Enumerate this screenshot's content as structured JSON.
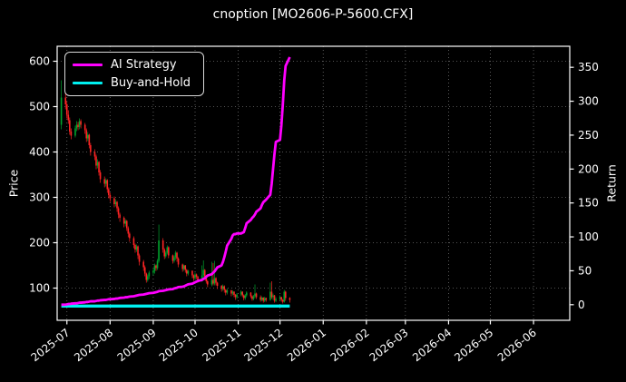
{
  "title": "cnoption [MO2606-P-5600.CFX]",
  "legend": {
    "items": [
      {
        "label": "AI Strategy",
        "color": "#ff00ff"
      },
      {
        "label": "Buy-and-Hold",
        "color": "#00f0f0"
      }
    ]
  },
  "chart_data": {
    "type": "candlestick_with_lines",
    "title": "cnoption [MO2606-P-5600.CFX]",
    "grid": true,
    "legend_position": "upper-left",
    "colors": {
      "background": "#000000",
      "text": "#ffffff",
      "grid": "#6f6f6f",
      "spine": "#ffffff",
      "up": "#00a52e",
      "down": "#ff2424",
      "ai": "#ff00ff",
      "buy_hold": "#00f0f0"
    },
    "price_axis": {
      "label": "Price",
      "ticks": [
        100,
        200,
        300,
        400,
        500,
        600
      ],
      "range": [
        29,
        633
      ]
    },
    "return_axis": {
      "label": "Return",
      "ticks": [
        0,
        50,
        100,
        150,
        200,
        250,
        300,
        350
      ],
      "range": [
        -23,
        381
      ]
    },
    "x_axis": {
      "range": [
        "2025-06-24",
        "2026-06-27"
      ],
      "ticks": [
        {
          "d": "2025-07-01",
          "label": "2025-07"
        },
        {
          "d": "2025-08-01",
          "label": "2025-08"
        },
        {
          "d": "2025-09-01",
          "label": "2025-09"
        },
        {
          "d": "2025-10-01",
          "label": "2025-10"
        },
        {
          "d": "2025-11-01",
          "label": "2025-11"
        },
        {
          "d": "2025-12-01",
          "label": "2025-12"
        },
        {
          "d": "2026-01-01",
          "label": "2026-01"
        },
        {
          "d": "2026-02-01",
          "label": "2026-02"
        },
        {
          "d": "2026-03-01",
          "label": "2026-03"
        },
        {
          "d": "2026-04-01",
          "label": "2026-04"
        },
        {
          "d": "2026-05-01",
          "label": "2026-05"
        },
        {
          "d": "2026-06-01",
          "label": "2026-06"
        }
      ]
    },
    "dates": [
      "2025-06-27",
      "2025-06-30",
      "2025-07-01",
      "2025-07-02",
      "2025-07-03",
      "2025-07-04",
      "2025-07-07",
      "2025-07-08",
      "2025-07-09",
      "2025-07-10",
      "2025-07-11",
      "2025-07-14",
      "2025-07-15",
      "2025-07-16",
      "2025-07-17",
      "2025-07-18",
      "2025-07-21",
      "2025-07-22",
      "2025-07-23",
      "2025-07-24",
      "2025-07-25",
      "2025-07-28",
      "2025-07-29",
      "2025-07-30",
      "2025-07-31",
      "2025-08-01",
      "2025-08-04",
      "2025-08-05",
      "2025-08-06",
      "2025-08-07",
      "2025-08-08",
      "2025-08-11",
      "2025-08-12",
      "2025-08-13",
      "2025-08-14",
      "2025-08-15",
      "2025-08-18",
      "2025-08-19",
      "2025-08-20",
      "2025-08-21",
      "2025-08-22",
      "2025-08-25",
      "2025-08-26",
      "2025-08-27",
      "2025-08-28",
      "2025-08-29",
      "2025-09-01",
      "2025-09-02",
      "2025-09-03",
      "2025-09-04",
      "2025-09-05",
      "2025-09-08",
      "2025-09-09",
      "2025-09-10",
      "2025-09-11",
      "2025-09-12",
      "2025-09-15",
      "2025-09-16",
      "2025-09-17",
      "2025-09-18",
      "2025-09-19",
      "2025-09-22",
      "2025-09-23",
      "2025-09-24",
      "2025-09-25",
      "2025-09-26",
      "2025-09-29",
      "2025-09-30",
      "2025-10-01",
      "2025-10-02",
      "2025-10-03",
      "2025-10-06",
      "2025-10-07",
      "2025-10-08",
      "2025-10-09",
      "2025-10-10",
      "2025-10-13",
      "2025-10-14",
      "2025-10-15",
      "2025-10-16",
      "2025-10-17",
      "2025-10-20",
      "2025-10-21",
      "2025-10-22",
      "2025-10-23",
      "2025-10-24",
      "2025-10-27",
      "2025-10-28",
      "2025-10-29",
      "2025-10-30",
      "2025-10-31",
      "2025-11-03",
      "2025-11-04",
      "2025-11-05",
      "2025-11-06",
      "2025-11-07",
      "2025-11-10",
      "2025-11-11",
      "2025-11-12",
      "2025-11-13",
      "2025-11-14",
      "2025-11-17",
      "2025-11-18",
      "2025-11-19",
      "2025-11-20",
      "2025-11-21",
      "2025-11-24",
      "2025-11-25",
      "2025-11-26",
      "2025-11-27",
      "2025-11-28",
      "2025-12-01",
      "2025-12-02",
      "2025-12-03",
      "2025-12-04",
      "2025-12-05",
      "2025-12-08"
    ],
    "ohlc": [
      [
        460,
        558,
        450,
        520
      ],
      [
        520,
        536,
        494,
        505
      ],
      [
        505,
        512,
        474,
        482
      ],
      [
        482,
        492,
        462,
        470
      ],
      [
        470,
        476,
        438,
        445
      ],
      [
        445,
        452,
        428,
        436
      ],
      [
        436,
        458,
        432,
        452
      ],
      [
        452,
        468,
        446,
        460
      ],
      [
        460,
        466,
        448,
        455
      ],
      [
        455,
        474,
        450,
        468
      ],
      [
        468,
        472,
        452,
        460
      ],
      [
        460,
        464,
        440,
        448
      ],
      [
        448,
        452,
        422,
        430
      ],
      [
        430,
        444,
        424,
        438
      ],
      [
        438,
        440,
        408,
        415
      ],
      [
        415,
        420,
        392,
        400
      ],
      [
        400,
        406,
        382,
        390
      ],
      [
        390,
        394,
        362,
        370
      ],
      [
        370,
        384,
        364,
        378
      ],
      [
        378,
        380,
        348,
        355
      ],
      [
        355,
        360,
        332,
        340
      ],
      [
        340,
        346,
        322,
        330
      ],
      [
        330,
        342,
        324,
        338
      ],
      [
        338,
        340,
        310,
        318
      ],
      [
        318,
        322,
        298,
        305
      ],
      [
        305,
        310,
        290,
        298
      ],
      [
        298,
        302,
        278,
        285
      ],
      [
        285,
        296,
        280,
        290
      ],
      [
        290,
        292,
        268,
        276
      ],
      [
        276,
        280,
        254,
        262
      ],
      [
        262,
        266,
        246,
        255
      ],
      [
        255,
        258,
        234,
        242
      ],
      [
        242,
        252,
        236,
        248
      ],
      [
        248,
        250,
        226,
        232
      ],
      [
        232,
        236,
        212,
        220
      ],
      [
        220,
        224,
        202,
        210
      ],
      [
        210,
        214,
        188,
        195
      ],
      [
        195,
        198,
        178,
        185
      ],
      [
        185,
        196,
        180,
        192
      ],
      [
        192,
        194,
        164,
        172
      ],
      [
        172,
        176,
        150,
        158
      ],
      [
        158,
        162,
        138,
        146
      ],
      [
        146,
        150,
        126,
        132
      ],
      [
        132,
        134,
        112,
        118
      ],
      [
        118,
        130,
        114,
        126
      ],
      [
        126,
        138,
        120,
        134
      ],
      [
        134,
        142,
        128,
        138
      ],
      [
        138,
        154,
        132,
        150
      ],
      [
        150,
        152,
        138,
        144
      ],
      [
        144,
        164,
        140,
        160
      ],
      [
        160,
        240,
        156,
        205
      ],
      [
        205,
        210,
        178,
        185
      ],
      [
        185,
        188,
        164,
        170
      ],
      [
        170,
        182,
        166,
        178
      ],
      [
        178,
        194,
        174,
        190
      ],
      [
        190,
        192,
        166,
        172
      ],
      [
        172,
        174,
        154,
        160
      ],
      [
        160,
        172,
        156,
        168
      ],
      [
        168,
        182,
        162,
        178
      ],
      [
        178,
        180,
        158,
        165
      ],
      [
        165,
        168,
        146,
        152
      ],
      [
        152,
        154,
        136,
        142
      ],
      [
        142,
        152,
        138,
        150
      ],
      [
        150,
        151,
        134,
        140
      ],
      [
        140,
        142,
        126,
        132
      ],
      [
        132,
        140,
        128,
        138
      ],
      [
        138,
        139,
        122,
        128
      ],
      [
        128,
        130,
        116,
        122
      ],
      [
        122,
        134,
        118,
        130
      ],
      [
        130,
        132,
        120,
        125
      ],
      [
        125,
        127,
        112,
        118
      ],
      [
        118,
        150,
        114,
        128
      ],
      [
        128,
        161,
        122,
        140
      ],
      [
        140,
        142,
        118,
        125
      ],
      [
        125,
        128,
        110,
        115
      ],
      [
        115,
        118,
        102,
        108
      ],
      [
        108,
        158,
        104,
        118
      ],
      [
        118,
        155,
        106,
        110
      ],
      [
        110,
        160,
        106,
        122
      ],
      [
        122,
        124,
        106,
        112
      ],
      [
        112,
        114,
        98,
        105
      ],
      [
        105,
        107,
        92,
        98
      ],
      [
        98,
        108,
        94,
        104
      ],
      [
        104,
        106,
        90,
        96
      ],
      [
        96,
        98,
        84,
        90
      ],
      [
        90,
        99,
        86,
        95
      ],
      [
        95,
        96,
        82,
        88
      ],
      [
        88,
        95,
        84,
        92
      ],
      [
        92,
        93,
        80,
        85
      ],
      [
        85,
        87,
        74,
        80
      ],
      [
        80,
        89,
        76,
        86
      ],
      [
        86,
        95,
        82,
        92
      ],
      [
        92,
        93,
        80,
        84
      ],
      [
        84,
        86,
        73,
        78
      ],
      [
        78,
        87,
        74,
        84
      ],
      [
        84,
        93,
        80,
        90
      ],
      [
        90,
        91,
        78,
        82
      ],
      [
        82,
        84,
        72,
        76
      ],
      [
        76,
        85,
        73,
        82
      ],
      [
        82,
        108,
        78,
        88
      ],
      [
        88,
        90,
        76,
        80
      ],
      [
        80,
        84,
        70,
        74
      ],
      [
        74,
        82,
        71,
        79
      ],
      [
        79,
        80,
        68,
        72
      ],
      [
        72,
        81,
        69,
        78
      ],
      [
        78,
        79,
        70,
        74
      ],
      [
        74,
        112,
        72,
        92
      ],
      [
        92,
        115,
        76,
        80
      ],
      [
        80,
        88,
        74,
        84
      ],
      [
        84,
        85,
        68,
        72
      ],
      [
        72,
        80,
        69,
        76
      ],
      [
        76,
        84,
        72,
        80
      ],
      [
        80,
        81,
        70,
        74
      ],
      [
        74,
        76,
        66,
        70
      ],
      [
        70,
        96,
        68,
        92
      ],
      [
        92,
        94,
        72,
        78
      ],
      [
        78,
        80,
        68,
        74
      ]
    ],
    "series": [
      {
        "name": "AI Strategy",
        "axis": "return",
        "color": "#ff00ff",
        "values": [
          0,
          0,
          0.5,
          1,
          1,
          1.5,
          2,
          2,
          2.5,
          3,
          3,
          3.5,
          4,
          4,
          4.5,
          5,
          5,
          5.5,
          6,
          6,
          6.5,
          7,
          7,
          7.5,
          8,
          8,
          8.5,
          9,
          9,
          9.5,
          10,
          10.5,
          11,
          11,
          11.5,
          12,
          12.5,
          13,
          13.5,
          14,
          14.5,
          15,
          15.5,
          16,
          16.5,
          17,
          17.5,
          18,
          18.5,
          19,
          20,
          20.5,
          21,
          21.5,
          22,
          22.5,
          23,
          24,
          24.5,
          25,
          26,
          26.5,
          27,
          28,
          29,
          30,
          31,
          32,
          33,
          34,
          35,
          36.5,
          38,
          39,
          41,
          43,
          45,
          47,
          49,
          52,
          55,
          58,
          63,
          70,
          78,
          87,
          97,
          102,
          104,
          104,
          105,
          105,
          106,
          107,
          113,
          120,
          125,
          128,
          130,
          133,
          137,
          142,
          147,
          151,
          153,
          155,
          162,
          178,
          200,
          222,
          240,
          243,
          265,
          295,
          330,
          352,
          365
        ]
      },
      {
        "name": "Buy-and-Hold",
        "axis": "return",
        "color": "#00f0f0",
        "points": [
          [
            "2025-06-27",
            -2
          ],
          [
            "2025-12-08",
            -2
          ]
        ]
      }
    ]
  }
}
